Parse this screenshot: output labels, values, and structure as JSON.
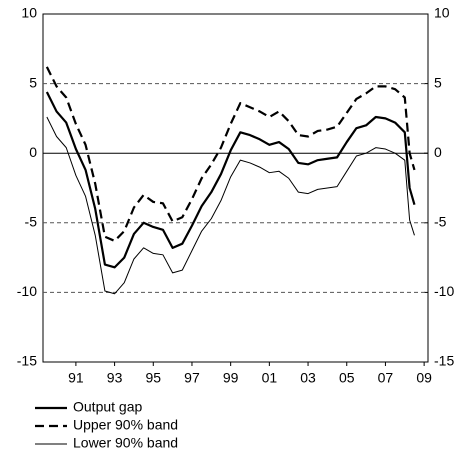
{
  "chart_data": {
    "type": "line",
    "x": [
      1990,
      1990.5,
      1991,
      1991.5,
      1992,
      1992.5,
      1993,
      1993.5,
      1994,
      1994.5,
      1995,
      1995.5,
      1996,
      1996.5,
      1997,
      1997.5,
      1998,
      1998.5,
      1999,
      1999.5,
      2000,
      2000.5,
      2001,
      2001.5,
      2002,
      2002.5,
      2003,
      2003.5,
      2004,
      2004.5,
      2005,
      2005.5,
      2006,
      2006.5,
      2007,
      2007.5,
      2008,
      2008.5,
      2008.75,
      2009
    ],
    "series": [
      {
        "name": "Output gap",
        "color": "#000000",
        "dash": "solid",
        "width": 2.2,
        "values": [
          4.4,
          3.0,
          2.2,
          0.3,
          -1.2,
          -4.0,
          -8.0,
          -8.2,
          -7.5,
          -5.8,
          -5.0,
          -5.3,
          -5.5,
          -6.8,
          -6.5,
          -5.2,
          -3.8,
          -2.8,
          -1.5,
          0.2,
          1.5,
          1.3,
          1.0,
          0.6,
          0.8,
          0.3,
          -0.7,
          -0.8,
          -0.5,
          -0.4,
          -0.3,
          0.8,
          1.8,
          2.0,
          2.6,
          2.5,
          2.2,
          1.5,
          -2.5,
          -3.7
        ]
      },
      {
        "name": "Upper 90% band",
        "color": "#000000",
        "dash": "dashed",
        "width": 2.2,
        "values": [
          6.2,
          4.8,
          4.0,
          2.1,
          0.6,
          -2.2,
          -6.0,
          -6.3,
          -5.6,
          -3.9,
          -3.0,
          -3.5,
          -3.6,
          -4.9,
          -4.6,
          -3.3,
          -1.8,
          -0.8,
          0.4,
          2.1,
          3.6,
          3.3,
          3.0,
          2.6,
          3.0,
          2.3,
          1.3,
          1.2,
          1.6,
          1.7,
          1.9,
          2.9,
          3.9,
          4.3,
          4.8,
          4.8,
          4.6,
          4.0,
          0.0,
          -1.2
        ]
      },
      {
        "name": "Lower 90% band",
        "color": "#000000",
        "dash": "solid",
        "width": 1,
        "values": [
          2.6,
          1.2,
          0.4,
          -1.6,
          -3.1,
          -5.9,
          -9.9,
          -10.1,
          -9.3,
          -7.6,
          -6.8,
          -7.2,
          -7.3,
          -8.6,
          -8.4,
          -7.0,
          -5.6,
          -4.7,
          -3.4,
          -1.7,
          -0.5,
          -0.7,
          -1.0,
          -1.4,
          -1.3,
          -1.8,
          -2.8,
          -2.9,
          -2.6,
          -2.5,
          -2.4,
          -1.3,
          -0.2,
          0.0,
          0.4,
          0.3,
          0.0,
          -0.5,
          -4.8,
          -5.9
        ]
      }
    ],
    "xlim": [
      1989.8,
      2009.7
    ],
    "xticks": [
      {
        "value": 1991.5,
        "label": "91"
      },
      {
        "value": 1993.5,
        "label": "93"
      },
      {
        "value": 1995.5,
        "label": "95"
      },
      {
        "value": 1997.5,
        "label": "97"
      },
      {
        "value": 1999.5,
        "label": "99"
      },
      {
        "value": 2001.5,
        "label": "01"
      },
      {
        "value": 2003.5,
        "label": "03"
      },
      {
        "value": 2005.5,
        "label": "05"
      },
      {
        "value": 2007.5,
        "label": "07"
      },
      {
        "value": 2009.5,
        "label": "09"
      }
    ],
    "ylim": [
      -15,
      10
    ],
    "yticks": [
      -15,
      -10,
      -5,
      0,
      5,
      10
    ],
    "grid": true,
    "legend": "bottom-left"
  }
}
